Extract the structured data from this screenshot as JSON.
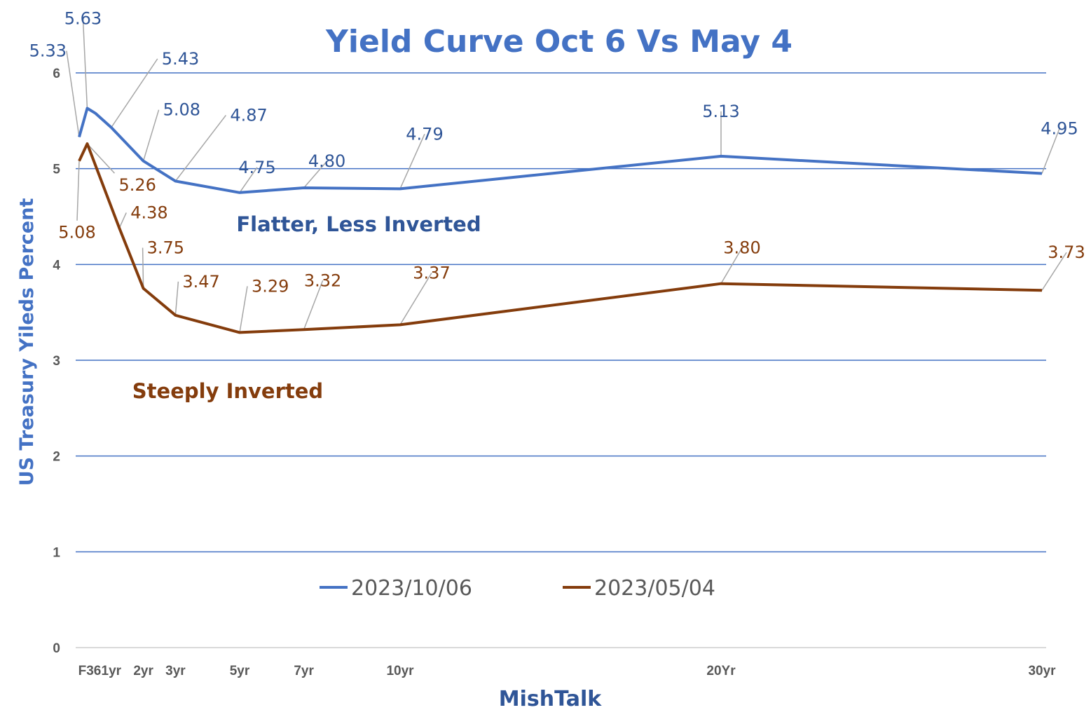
{
  "chart_data": {
    "type": "line",
    "title": "Yield Curve Oct 6 Vs May 4",
    "xlabel": "MishTalk",
    "ylabel": "US Treasury Yileds Percent",
    "ylim": [
      0,
      6
    ],
    "yticks": [
      0,
      1,
      2,
      3,
      4,
      5,
      6
    ],
    "grid": true,
    "legend": "bottom-center",
    "xticks": [
      {
        "label": "F36",
        "years": 0.26
      },
      {
        "label": "1yr",
        "years": 1
      },
      {
        "label": "2yr",
        "years": 2
      },
      {
        "label": "3yr",
        "years": 3
      },
      {
        "label": "5yr",
        "years": 5
      },
      {
        "label": "7yr",
        "years": 7
      },
      {
        "label": "10yr",
        "years": 10
      },
      {
        "label": "20Yr",
        "years": 20
      },
      {
        "label": "30yr",
        "years": 30
      }
    ],
    "series": [
      {
        "name": "2023/10/06",
        "color": "#4472c4",
        "label_color": "#2f5597",
        "points": [
          [
            0,
            5.33
          ],
          [
            0.25,
            5.63
          ],
          [
            0.5,
            5.58
          ],
          [
            1,
            5.43
          ],
          [
            2,
            5.08
          ],
          [
            3,
            4.87
          ],
          [
            5,
            4.75
          ],
          [
            7,
            4.8
          ],
          [
            10,
            4.79
          ],
          [
            20,
            5.13
          ],
          [
            30,
            4.95
          ]
        ],
        "labels": [
          {
            "years": 0,
            "value": "5.33"
          },
          {
            "years": 0.25,
            "value": "5.63"
          },
          {
            "years": 1,
            "value": "5.43"
          },
          {
            "years": 2,
            "value": "5.08"
          },
          {
            "years": 3,
            "value": "4.87"
          },
          {
            "years": 5,
            "value": "4.75"
          },
          {
            "years": 7,
            "value": "4.80"
          },
          {
            "years": 10,
            "value": "4.79"
          },
          {
            "years": 20,
            "value": "5.13"
          },
          {
            "years": 30,
            "value": "4.95"
          }
        ]
      },
      {
        "name": "2023/05/04",
        "color": "#843c0c",
        "label_color": "#843c0c",
        "points": [
          [
            0,
            5.08
          ],
          [
            0.25,
            5.26
          ],
          [
            1.25,
            4.38
          ],
          [
            2,
            3.75
          ],
          [
            3,
            3.47
          ],
          [
            5,
            3.29
          ],
          [
            7,
            3.32
          ],
          [
            10,
            3.37
          ],
          [
            20,
            3.8
          ],
          [
            30,
            3.73
          ]
        ],
        "labels": [
          {
            "years": 0,
            "value": "5.08"
          },
          {
            "years": 0.25,
            "value": "5.26"
          },
          {
            "years": 1.25,
            "value": "4.38"
          },
          {
            "years": 2,
            "value": "3.75"
          },
          {
            "years": 3,
            "value": "3.47"
          },
          {
            "years": 5,
            "value": "3.29"
          },
          {
            "years": 7,
            "value": "3.32"
          },
          {
            "years": 10,
            "value": "3.37"
          },
          {
            "years": 20,
            "value": "3.80"
          },
          {
            "years": 30,
            "value": "3.73"
          }
        ]
      }
    ],
    "annotations": [
      {
        "text": "Flatter, Less Inverted",
        "color": "#2f5597"
      },
      {
        "text": "Steeply Inverted",
        "color": "#843c0c"
      }
    ]
  }
}
